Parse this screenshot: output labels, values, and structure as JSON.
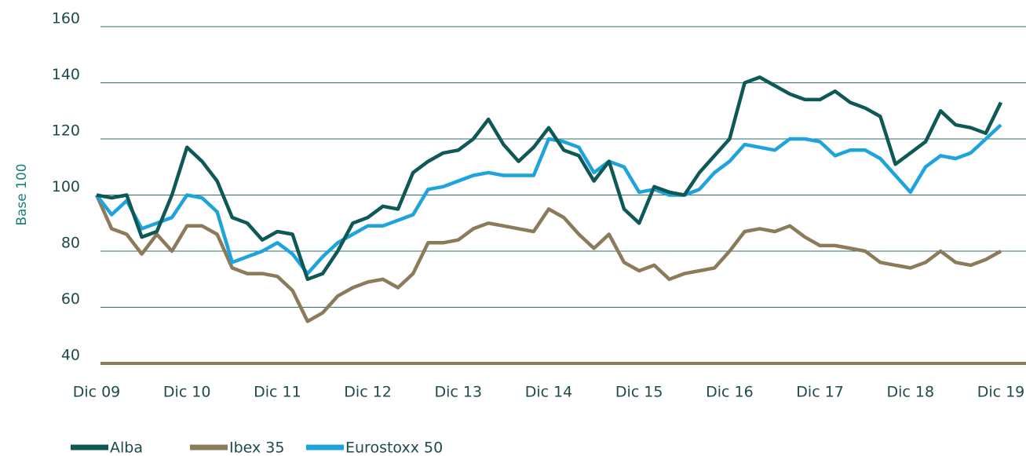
{
  "chart_data": {
    "type": "line",
    "y_label": "Base 100",
    "categories": [
      "Dic 09",
      null,
      null,
      null,
      null,
      null,
      "Dic 10",
      null,
      null,
      null,
      null,
      null,
      "Dic 11",
      null,
      null,
      null,
      null,
      null,
      "Dic 12",
      null,
      null,
      null,
      null,
      null,
      "Dic 13",
      null,
      null,
      null,
      null,
      null,
      "Dic 14",
      null,
      null,
      null,
      null,
      null,
      "Dic 15",
      null,
      null,
      null,
      null,
      null,
      "Dic 16",
      null,
      null,
      null,
      null,
      null,
      "Dic 17",
      null,
      null,
      null,
      null,
      null,
      "Dic 18",
      null,
      null,
      null,
      null,
      null,
      "Dic 19"
    ],
    "series": [
      {
        "name": "Alba",
        "color": "#0e5856",
        "values": [
          100,
          99,
          100,
          85,
          87,
          100,
          117,
          112,
          105,
          92,
          90,
          84,
          87,
          86,
          70,
          72,
          80,
          90,
          92,
          96,
          95,
          108,
          112,
          115,
          116,
          120,
          127,
          118,
          112,
          117,
          124,
          116,
          114,
          105,
          112,
          95,
          90,
          103,
          101,
          100,
          108,
          114,
          120,
          140,
          142,
          139,
          136,
          134,
          134,
          137,
          133,
          131,
          128,
          111,
          115,
          119,
          130,
          125,
          124,
          122,
          133
        ]
      },
      {
        "name": "Ibex 35",
        "color": "#8c7b5a",
        "values": [
          100,
          88,
          86,
          79,
          86,
          80,
          89,
          89,
          86,
          74,
          72,
          72,
          71,
          66,
          55,
          58,
          64,
          67,
          69,
          70,
          67,
          72,
          83,
          83,
          84,
          88,
          90,
          89,
          88,
          87,
          95,
          92,
          86,
          81,
          86,
          76,
          73,
          75,
          70,
          72,
          73,
          74,
          80,
          87,
          88,
          87,
          89,
          85,
          82,
          82,
          81,
          80,
          76,
          75,
          74,
          76,
          80,
          76,
          75,
          77,
          80
        ]
      },
      {
        "name": "Eurostoxx 50",
        "color": "#1fa3dc",
        "values": [
          100,
          93,
          98,
          88,
          90,
          92,
          100,
          99,
          94,
          76,
          78,
          80,
          83,
          79,
          72,
          78,
          83,
          86,
          89,
          89,
          91,
          93,
          102,
          103,
          105,
          107,
          108,
          107,
          107,
          107,
          120,
          119,
          117,
          108,
          112,
          110,
          101,
          102,
          100,
          100,
          102,
          108,
          112,
          118,
          117,
          116,
          120,
          120,
          119,
          114,
          116,
          116,
          113,
          107,
          101,
          110,
          114,
          113,
          115,
          120,
          125
        ]
      }
    ],
    "ylim": [
      40,
      160
    ],
    "yticks": [
      40,
      60,
      80,
      100,
      120,
      140,
      160
    ],
    "grid": true,
    "legend": "bottom"
  }
}
